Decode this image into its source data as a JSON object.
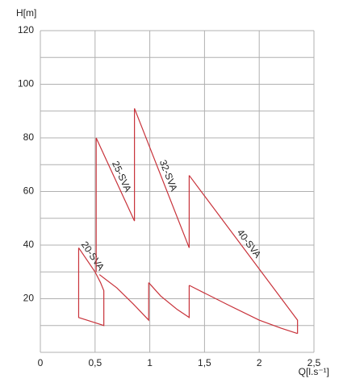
{
  "chart_data": {
    "type": "line",
    "xlabel": "Q[l.s⁻¹]",
    "ylabel": "H[m]",
    "xlim": [
      0,
      2.5
    ],
    "ylim": [
      0,
      120
    ],
    "xticks": [
      0,
      {
        "value": 0.5,
        "label": "0,5"
      },
      1,
      {
        "value": 1.5,
        "label": "1,5"
      },
      2,
      {
        "value": 2.5,
        "label": "2,5"
      }
    ],
    "yticks": [
      20,
      40,
      60,
      80,
      100,
      120
    ],
    "ygrid": [
      0,
      10,
      20,
      30,
      40,
      50,
      60,
      70,
      80,
      90,
      100,
      110,
      120
    ],
    "grid": true,
    "series": [
      {
        "name": "20-SVA",
        "color": "#c8323a",
        "x": [
          0.35,
          0.5,
          0.55,
          0.58,
          0.58,
          0.35,
          0.35
        ],
        "values": [
          39,
          30,
          26,
          23,
          10,
          13,
          39
        ]
      },
      {
        "name": "25-SVA",
        "color": "#c8323a",
        "x": [
          0.51,
          0.86,
          null,
          0.51,
          0.51,
          null,
          0.54,
          0.7,
          0.85,
          0.99,
          0.99
        ],
        "values": [
          80,
          49,
          null,
          80,
          30,
          null,
          29,
          24,
          18,
          12,
          26
        ]
      },
      {
        "name": "32-SVA",
        "color": "#c8323a",
        "x": [
          0.86,
          1.36,
          1.36,
          null,
          0.86,
          0.86,
          null,
          0.99,
          1.1,
          1.25,
          1.36,
          1.36
        ],
        "values": [
          91,
          39,
          66,
          null,
          91,
          49,
          null,
          26,
          21,
          16,
          13,
          25
        ]
      },
      {
        "name": "40-SVA",
        "color": "#c8323a",
        "x": [
          1.36,
          2.35,
          2.35,
          null,
          1.36,
          1.7,
          2.0,
          2.2,
          2.35
        ],
        "values": [
          66,
          12,
          7,
          null,
          25,
          18,
          12,
          9,
          7
        ]
      }
    ]
  }
}
